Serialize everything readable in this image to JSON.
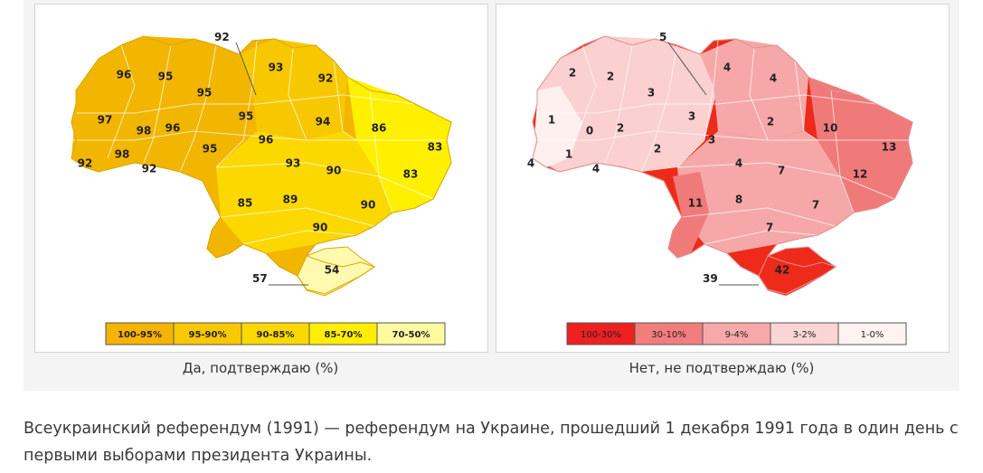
{
  "maps": [
    {
      "id": "yes",
      "caption": "Да, подтверждаю (%)",
      "callouts": [
        {
          "label": "92"
        },
        {
          "label": "57"
        }
      ],
      "regions": [
        "96",
        "95",
        "95",
        "93",
        "92",
        "97",
        "98",
        "96",
        "95",
        "94",
        "86",
        "92",
        "98",
        "92",
        "95",
        "96",
        "93",
        "83",
        "90",
        "83",
        "85",
        "89",
        "90",
        "90",
        "54"
      ],
      "legend": [
        {
          "label": "100-95%",
          "color": "#f4b400"
        },
        {
          "label": "95-90%",
          "color": "#f8c800"
        },
        {
          "label": "90-85%",
          "color": "#fbd900"
        },
        {
          "label": "85-70%",
          "color": "#ffee00"
        },
        {
          "label": "70-50%",
          "color": "#fffaa0"
        }
      ],
      "colors": {
        "c1": "#f2b600",
        "c2": "#f7c800",
        "c3": "#fad800",
        "c4": "#fff000",
        "c5": "#fffab0",
        "stroke": "#d9a800"
      }
    },
    {
      "id": "no",
      "caption": "Нет, не подтверждаю (%)",
      "callouts": [
        {
          "label": "5"
        },
        {
          "label": "39"
        }
      ],
      "regions": [
        "2",
        "2",
        "3",
        "4",
        "4",
        "1",
        "0",
        "2",
        "3",
        "2",
        "3",
        "1",
        "2",
        "10",
        "13",
        "4",
        "4",
        "4",
        "7",
        "12",
        "11",
        "8",
        "7",
        "7",
        "42"
      ],
      "legend": [
        {
          "label": "100-30%",
          "color": "#ee2020"
        },
        {
          "label": "30-10%",
          "color": "#f27d7d"
        },
        {
          "label": "9-4%",
          "color": "#f7a8a8"
        },
        {
          "label": "3-2%",
          "color": "#fbd4d4"
        },
        {
          "label": "1-0%",
          "color": "#fff2f2"
        }
      ],
      "colors": {
        "c1": "#ee2a1a",
        "c2": "#f07a7a",
        "c3": "#f6a8a8",
        "c4": "#fbd0d0",
        "c5": "#fff0f0",
        "stroke": "#e09090"
      }
    }
  ],
  "footer": "Всеукраинский референдум (1991) — референдум на Украине, прошедший 1 декабря 1991 года в один день с первыми выборами президента Украины."
}
